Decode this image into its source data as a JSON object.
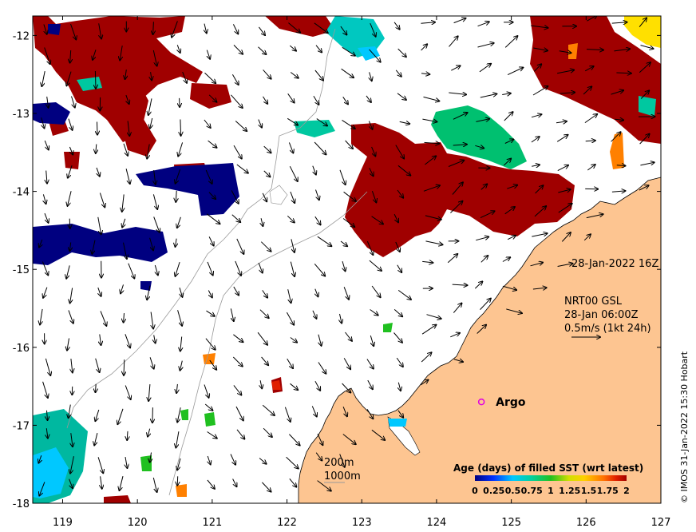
{
  "axes": {
    "x_ticks": [
      "119",
      "120",
      "121",
      "122",
      "123",
      "124",
      "125",
      "126",
      "127"
    ],
    "y_ticks": [
      "-12",
      "-13",
      "-14",
      "-15",
      "-16",
      "-17",
      "-18"
    ],
    "lon_range": [
      118.6,
      127.0
    ],
    "lat_range": [
      -18.0,
      -11.75
    ]
  },
  "annotations": {
    "date": "28-Jan-2022 16Z",
    "product": "NRT00 GSL",
    "current_time": "28-Jan 06:00Z",
    "current_scale": "0.5m/s (1kt 24h)",
    "isobath_200": "200m",
    "isobath_1000": "1000m"
  },
  "argo": {
    "label": "Argo",
    "lon": 124.6,
    "lat": -16.7
  },
  "legend": {
    "title": "Age (days) of filled SST (wrt latest)",
    "ticks": [
      "0",
      "0.25",
      "0.5",
      "0.75",
      "1",
      "1.25",
      "1.5",
      "1.75",
      "2"
    ],
    "colors": [
      "#000080",
      "#0050ff",
      "#00c8ff",
      "#00d890",
      "#20c020",
      "#c8e000",
      "#ffd000",
      "#ff8000",
      "#e02000",
      "#a00000"
    ]
  },
  "credit": "© IMOS 31-Jan-2022 15:30 Hobart",
  "colors": {
    "land": "#fdc591",
    "age_0": "#000080",
    "age_2": "#a00000",
    "age_1": "#00b050"
  }
}
